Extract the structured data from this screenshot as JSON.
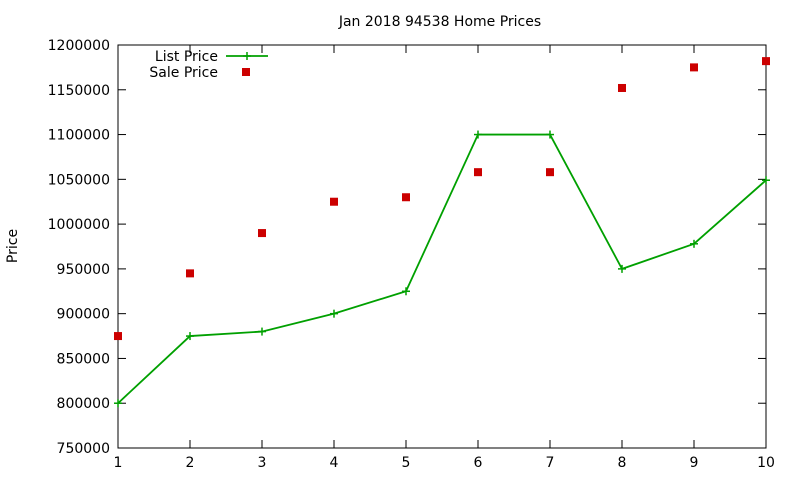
{
  "chart_data": {
    "type": "line",
    "title": "Jan 2018 94538 Home Prices",
    "xlabel": "",
    "ylabel": "Price",
    "x": [
      1,
      2,
      3,
      4,
      5,
      6,
      7,
      8,
      9,
      10
    ],
    "xlim": [
      1,
      10
    ],
    "ylim": [
      750000,
      1200000
    ],
    "ytick_step": 50000,
    "grid": false,
    "legend_position": "top-left",
    "series": [
      {
        "name": "List Price",
        "style": "line-points",
        "marker": "plus",
        "color": "#00a000",
        "values": [
          800000,
          875000,
          880000,
          900000,
          925000,
          1100000,
          1100000,
          950000,
          978000,
          1049000
        ]
      },
      {
        "name": "Sale Price",
        "style": "points",
        "marker": "square",
        "color": "#cc0000",
        "values": [
          875000,
          945000,
          990000,
          1025000,
          1030000,
          1058000,
          1058000,
          1152000,
          1175000,
          1182000
        ]
      }
    ]
  }
}
